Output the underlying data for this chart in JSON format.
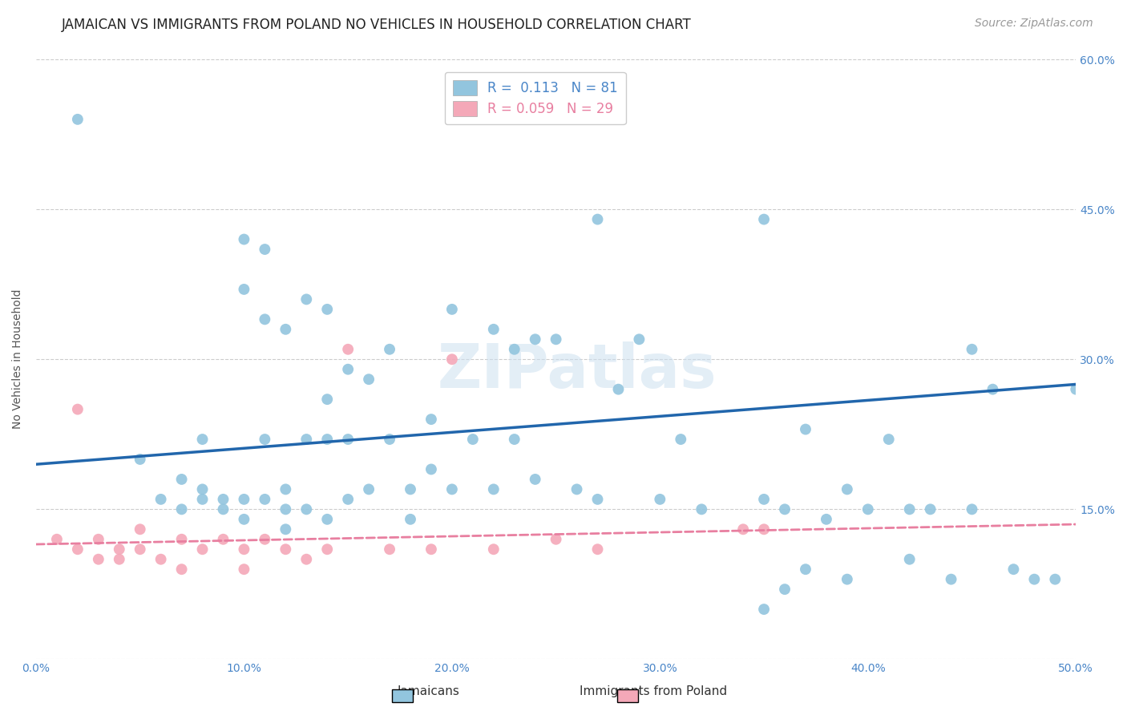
{
  "title": "JAMAICAN VS IMMIGRANTS FROM POLAND NO VEHICLES IN HOUSEHOLD CORRELATION CHART",
  "source": "Source: ZipAtlas.com",
  "ylabel": "No Vehicles in Household",
  "xlim": [
    0.0,
    0.5
  ],
  "ylim": [
    0.0,
    0.6
  ],
  "xtick_vals": [
    0.0,
    0.1,
    0.2,
    0.3,
    0.4,
    0.5
  ],
  "xtick_labels": [
    "0.0%",
    "10.0%",
    "20.0%",
    "30.0%",
    "40.0%",
    "50.0%"
  ],
  "ytick_vals": [
    0.0,
    0.15,
    0.3,
    0.45,
    0.6
  ],
  "ytick_labels": [
    "",
    "15.0%",
    "30.0%",
    "45.0%",
    "60.0%"
  ],
  "blue_R": "0.113",
  "blue_N": "81",
  "pink_R": "0.059",
  "pink_N": "29",
  "blue_color": "#92c5de",
  "pink_color": "#f4a8b8",
  "blue_line_color": "#2166ac",
  "pink_line_color": "#e87fa0",
  "watermark": "ZIPatlas",
  "blue_line_x0": 0.0,
  "blue_line_y0": 0.195,
  "blue_line_x1": 0.5,
  "blue_line_y1": 0.275,
  "pink_line_x0": 0.0,
  "pink_line_y0": 0.115,
  "pink_line_x1": 0.5,
  "pink_line_y1": 0.135,
  "blue_x": [
    0.02,
    0.05,
    0.06,
    0.07,
    0.07,
    0.08,
    0.08,
    0.08,
    0.09,
    0.09,
    0.1,
    0.1,
    0.1,
    0.1,
    0.11,
    0.11,
    0.11,
    0.11,
    0.12,
    0.12,
    0.12,
    0.12,
    0.13,
    0.13,
    0.13,
    0.14,
    0.14,
    0.14,
    0.14,
    0.15,
    0.15,
    0.15,
    0.16,
    0.16,
    0.17,
    0.17,
    0.18,
    0.18,
    0.19,
    0.19,
    0.2,
    0.2,
    0.21,
    0.22,
    0.22,
    0.23,
    0.23,
    0.24,
    0.24,
    0.25,
    0.26,
    0.27,
    0.27,
    0.28,
    0.29,
    0.3,
    0.31,
    0.32,
    0.35,
    0.35,
    0.36,
    0.37,
    0.37,
    0.38,
    0.39,
    0.39,
    0.4,
    0.41,
    0.42,
    0.43,
    0.44,
    0.45,
    0.45,
    0.46,
    0.47,
    0.48,
    0.49,
    0.5,
    0.35,
    0.36,
    0.42
  ],
  "blue_y": [
    0.54,
    0.2,
    0.16,
    0.18,
    0.15,
    0.22,
    0.17,
    0.16,
    0.16,
    0.15,
    0.42,
    0.37,
    0.14,
    0.16,
    0.41,
    0.34,
    0.22,
    0.16,
    0.33,
    0.17,
    0.15,
    0.13,
    0.36,
    0.22,
    0.15,
    0.35,
    0.26,
    0.22,
    0.14,
    0.29,
    0.22,
    0.16,
    0.28,
    0.17,
    0.31,
    0.22,
    0.17,
    0.14,
    0.24,
    0.19,
    0.35,
    0.17,
    0.22,
    0.33,
    0.17,
    0.31,
    0.22,
    0.32,
    0.18,
    0.32,
    0.17,
    0.44,
    0.16,
    0.27,
    0.32,
    0.16,
    0.22,
    0.15,
    0.44,
    0.16,
    0.15,
    0.23,
    0.09,
    0.14,
    0.17,
    0.08,
    0.15,
    0.22,
    0.15,
    0.15,
    0.08,
    0.31,
    0.15,
    0.27,
    0.09,
    0.08,
    0.08,
    0.27,
    0.05,
    0.07,
    0.1
  ],
  "pink_x": [
    0.01,
    0.02,
    0.02,
    0.03,
    0.03,
    0.04,
    0.04,
    0.05,
    0.05,
    0.06,
    0.07,
    0.07,
    0.08,
    0.09,
    0.1,
    0.1,
    0.11,
    0.12,
    0.13,
    0.14,
    0.15,
    0.17,
    0.19,
    0.2,
    0.22,
    0.25,
    0.27,
    0.34,
    0.35
  ],
  "pink_y": [
    0.12,
    0.25,
    0.11,
    0.12,
    0.1,
    0.11,
    0.1,
    0.13,
    0.11,
    0.1,
    0.09,
    0.12,
    0.11,
    0.12,
    0.11,
    0.09,
    0.12,
    0.11,
    0.1,
    0.11,
    0.31,
    0.11,
    0.11,
    0.3,
    0.11,
    0.12,
    0.11,
    0.13,
    0.13
  ],
  "title_fontsize": 12,
  "source_fontsize": 10,
  "axis_label_fontsize": 10,
  "tick_fontsize": 10,
  "legend_fontsize": 12
}
